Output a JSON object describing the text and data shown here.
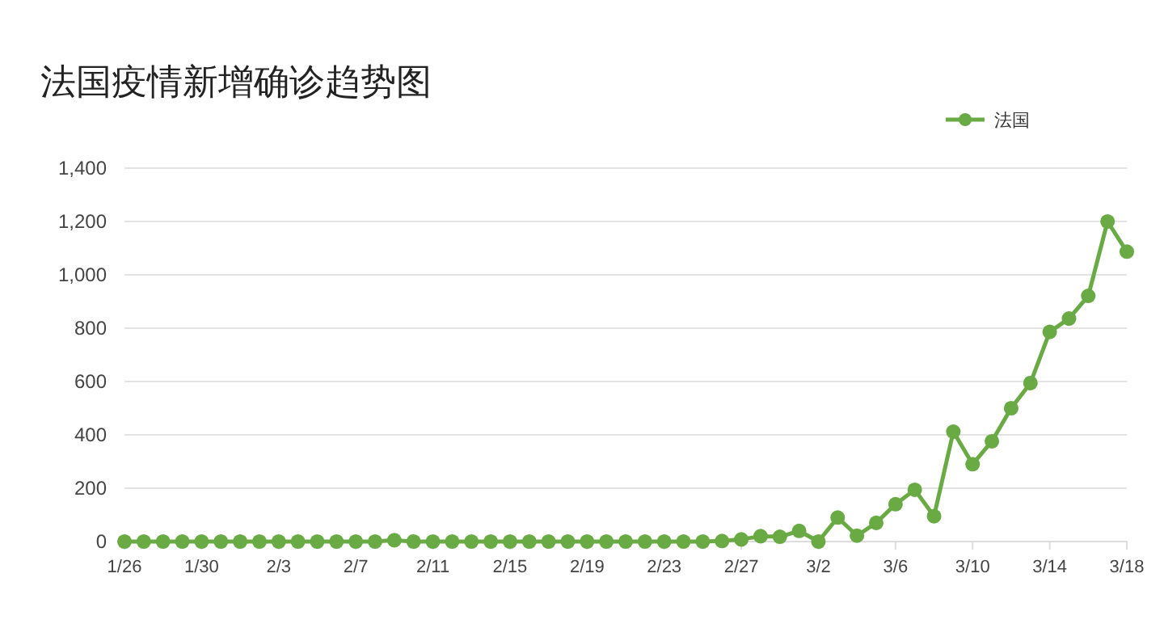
{
  "chart_data": {
    "type": "line",
    "title": "法国疫情新增确诊趋势图",
    "x": [
      "--01-26",
      "--01-27",
      "--01-28",
      "--01-29",
      "--01-30",
      "--01-31",
      "--02-01",
      "--02-02",
      "--02-03",
      "--02-04",
      "--02-05",
      "--02-06",
      "--02-07",
      "--02-08",
      "--02-09",
      "--02-10",
      "--02-11",
      "--02-12",
      "--02-13",
      "--02-14",
      "--02-15",
      "--02-16",
      "--02-17",
      "--02-18",
      "--02-19",
      "--02-20",
      "--02-21",
      "--02-22",
      "--02-23",
      "--02-24",
      "--02-25",
      "--02-26",
      "--02-27",
      "--02-28",
      "--02-29",
      "--03-01",
      "--03-02",
      "--03-03",
      "--03-04",
      "--03-05",
      "--03-06",
      "--03-07",
      "--03-08",
      "--03-09",
      "--03-10",
      "--03-11",
      "--03-12",
      "--03-13",
      "--03-14",
      "--03-15",
      "--03-16",
      "--03-17",
      "--03-18"
    ],
    "series": [
      {
        "name": "法国",
        "color": "#6aaa45",
        "values": [
          0,
          0,
          0,
          0,
          0,
          0,
          0,
          0,
          0,
          0,
          0,
          0,
          0,
          0,
          5,
          0,
          0,
          0,
          0,
          0,
          0,
          0,
          0,
          0,
          0,
          0,
          0,
          0,
          0,
          0,
          0,
          2,
          8,
          20,
          18,
          40,
          0,
          90,
          22,
          70,
          140,
          194,
          95,
          412,
          290,
          376,
          500,
          594,
          786,
          836,
          921,
          1200,
          1087
        ]
      }
    ],
    "xlim": [
      "--01-26",
      "--03-18"
    ],
    "xticks": [
      {
        "value": "--01-26",
        "label": "1/26"
      },
      {
        "value": "--01-30",
        "label": "1/30"
      },
      {
        "value": "--02-03",
        "label": "2/3"
      },
      {
        "value": "--02-07",
        "label": "2/7"
      },
      {
        "value": "--02-11",
        "label": "2/11"
      },
      {
        "value": "--02-15",
        "label": "2/15"
      },
      {
        "value": "--02-19",
        "label": "2/19"
      },
      {
        "value": "--02-23",
        "label": "2/23"
      },
      {
        "value": "--02-27",
        "label": "2/27"
      },
      {
        "value": "--03-02",
        "label": "3/2"
      },
      {
        "value": "--03-06",
        "label": "3/6"
      },
      {
        "value": "--03-10",
        "label": "3/10"
      },
      {
        "value": "--03-14",
        "label": "3/14"
      },
      {
        "value": "--03-18",
        "label": "3/18"
      }
    ],
    "ylim": [
      0,
      1400
    ],
    "yticks": [
      {
        "value": 0,
        "label": "0"
      },
      {
        "value": 200,
        "label": "200"
      },
      {
        "value": 400,
        "label": "400"
      },
      {
        "value": 600,
        "label": "600"
      },
      {
        "value": 800,
        "label": "800"
      },
      {
        "value": 1000,
        "label": "1,000"
      },
      {
        "value": 1200,
        "label": "1,200"
      },
      {
        "value": 1400,
        "label": "1,400"
      }
    ],
    "grid": "y",
    "legend": "top right",
    "marker": "circle",
    "line_style": "solid"
  }
}
